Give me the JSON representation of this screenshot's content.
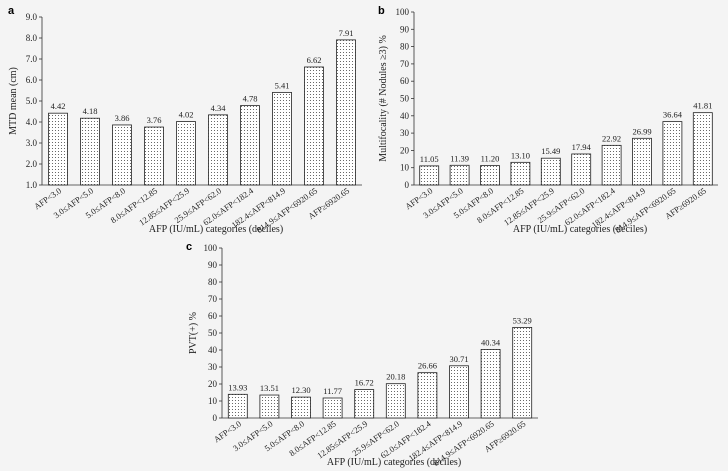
{
  "chart_data": [
    {
      "panel": "a",
      "type": "bar",
      "categories": [
        "AFP<3.0",
        "3.0≤AFP<5.0",
        "5.0≤AFP<8.0",
        "8.0≤AFP<12.85",
        "12.85≤AFP<25.9",
        "25.9≤AFP<62.0",
        "62.0≤AFP<182.4",
        "182.4≤AFP<814.9",
        "814.9≤AFP<6920.65",
        "AFP≥6920.65"
      ],
      "values": [
        4.42,
        4.18,
        3.86,
        3.76,
        4.02,
        4.34,
        4.78,
        5.41,
        6.62,
        7.91
      ],
      "value_labels": [
        "4.42",
        "4.18",
        "3.86",
        "3.76",
        "4.02",
        "4.34",
        "4.78",
        "5.41",
        "6.62",
        "7.91"
      ],
      "ylim": [
        1.0,
        9.0
      ],
      "yticks": [
        "1.0",
        "2.0",
        "3.0",
        "4.0",
        "5.0",
        "6.0",
        "7.0",
        "8.0",
        "9.0"
      ],
      "ylabel": "MTD mean (cm)",
      "xlabel": "AFP (IU/mL) categories (deciles)"
    },
    {
      "panel": "b",
      "type": "bar",
      "categories": [
        "AFP<3.0",
        "3.0≤AFP<5.0",
        "5.0≤AFP<8.0",
        "8.0≤AFP<12.85",
        "12.85≤AFP<25.9",
        "25.9≤AFP<62.0",
        "62.0≤AFP<182.4",
        "182.4≤AFP<814.9",
        "814.9≤AFP<6920.65",
        "AFP≥6920.65"
      ],
      "values": [
        11.05,
        11.39,
        11.2,
        13.1,
        15.49,
        17.94,
        22.92,
        26.99,
        36.64,
        41.81
      ],
      "value_labels": [
        "11.05",
        "11.39",
        "11.20",
        "13.10",
        "15.49",
        "17.94",
        "22.92",
        "26.99",
        "36.64",
        "41.81"
      ],
      "ylim": [
        0,
        100
      ],
      "yticks": [
        "0",
        "10",
        "20",
        "30",
        "40",
        "50",
        "60",
        "70",
        "80",
        "90",
        "100"
      ],
      "ylabel": "Multifocality (# Nodules ≥3) %",
      "xlabel": "AFP (IU/mL) categories (deciles)"
    },
    {
      "panel": "c",
      "type": "bar",
      "categories": [
        "AFP<3.0",
        "3.0≤AFP<5.0",
        "5.0≤AFP<8.0",
        "8.0≤AFP<12.85",
        "12.85≤AFP<25.9",
        "25.9≤AFP<62.0",
        "62.0≤AFP<182.4",
        "182.4≤AFP<814.9",
        "814.9≤AFP<6920.65",
        "AFP≥6920.65"
      ],
      "values": [
        13.93,
        13.51,
        12.3,
        11.77,
        16.72,
        20.18,
        26.66,
        30.71,
        40.34,
        53.29
      ],
      "value_labels": [
        "13.93",
        "13.51",
        "12.30",
        "11.77",
        "16.72",
        "20.18",
        "26.66",
        "30.71",
        "40.34",
        "53.29"
      ],
      "ylim": [
        0,
        100
      ],
      "yticks": [
        "0",
        "10",
        "20",
        "30",
        "40",
        "50",
        "60",
        "70",
        "80",
        "90",
        "100"
      ],
      "ylabel": "PVT(+) %",
      "xlabel": "AFP (IU/mL) categories (deciles)"
    }
  ]
}
